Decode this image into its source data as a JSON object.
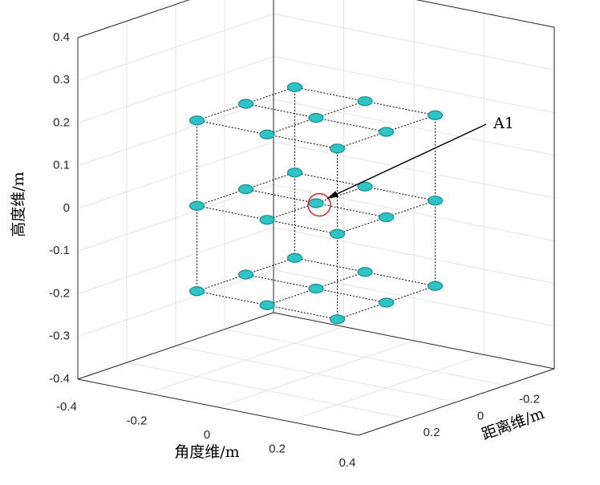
{
  "chart_data": {
    "type": "scatter3d",
    "xlabel": "角度维/m",
    "ylabel": "距离维/m",
    "zlabel": "高度维/m",
    "annotation": "A1",
    "xlim": [
      -0.4,
      0.4
    ],
    "ylim": [
      -0.4,
      0.4
    ],
    "zlim": [
      -0.4,
      0.4
    ],
    "xticks": [
      -0.4,
      -0.2,
      0,
      0.2,
      0.4
    ],
    "yticks": [
      -0.2,
      0,
      0.2
    ],
    "zticks": [
      -0.4,
      -0.3,
      -0.2,
      -0.1,
      0,
      0.1,
      0.2,
      0.3,
      0.4
    ],
    "grid": true,
    "color": "#2ec4c6",
    "x": [
      -0.2,
      0,
      0.2,
      -0.2,
      0,
      0.2,
      -0.2,
      0,
      0.2,
      -0.2,
      0,
      0.2,
      -0.2,
      0,
      0.2,
      -0.2,
      0,
      0.2,
      -0.2,
      0,
      0.2,
      -0.2,
      0,
      0.2,
      -0.2,
      0,
      0.2
    ],
    "y": [
      0.2,
      0.2,
      0.2,
      0,
      0,
      0,
      -0.2,
      -0.2,
      -0.2,
      0.2,
      0.2,
      0.2,
      0,
      0,
      0,
      -0.2,
      -0.2,
      -0.2,
      0.2,
      0.2,
      0.2,
      0,
      0,
      0,
      -0.2,
      -0.2,
      -0.2
    ],
    "z": [
      0.2,
      0.2,
      0.2,
      0.2,
      0.2,
      0.2,
      0.2,
      0.2,
      0.2,
      0,
      0,
      0,
      0,
      0,
      0,
      0,
      0,
      0,
      -0.2,
      -0.2,
      -0.2,
      -0.2,
      -0.2,
      -0.2,
      -0.2,
      -0.2,
      -0.2
    ]
  }
}
